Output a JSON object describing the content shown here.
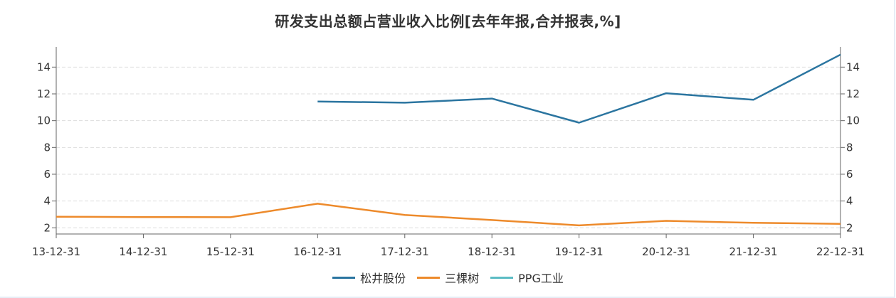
{
  "chart_data": {
    "type": "line",
    "title": "研发支出总额占营业收入比例[去年年报,合并报表,%]",
    "xlabel": "",
    "ylabel": "",
    "categories": [
      "13-12-31",
      "14-12-31",
      "15-12-31",
      "16-12-31",
      "17-12-31",
      "18-12-31",
      "19-12-31",
      "20-12-31",
      "21-12-31",
      "22-12-31"
    ],
    "y_ticks": [
      2,
      4,
      6,
      8,
      10,
      12,
      14
    ],
    "ylim": [
      1.5,
      15.3
    ],
    "grid": true,
    "dual_y_axis_mirrored": true,
    "legend_position": "bottom",
    "series": [
      {
        "name": "松井股份",
        "color": "#2b75a0",
        "values": [
          null,
          null,
          null,
          11.43,
          11.34,
          11.65,
          9.85,
          12.05,
          11.56,
          14.93
        ]
      },
      {
        "name": "三棵树",
        "color": "#ed8a2b",
        "values": [
          2.83,
          2.8,
          2.79,
          3.8,
          2.96,
          2.58,
          2.18,
          2.52,
          2.37,
          2.3
        ]
      },
      {
        "name": "PPG工业",
        "color": "#5cbcc4",
        "values": [
          null,
          null,
          null,
          null,
          null,
          null,
          null,
          null,
          null,
          null
        ]
      }
    ]
  }
}
